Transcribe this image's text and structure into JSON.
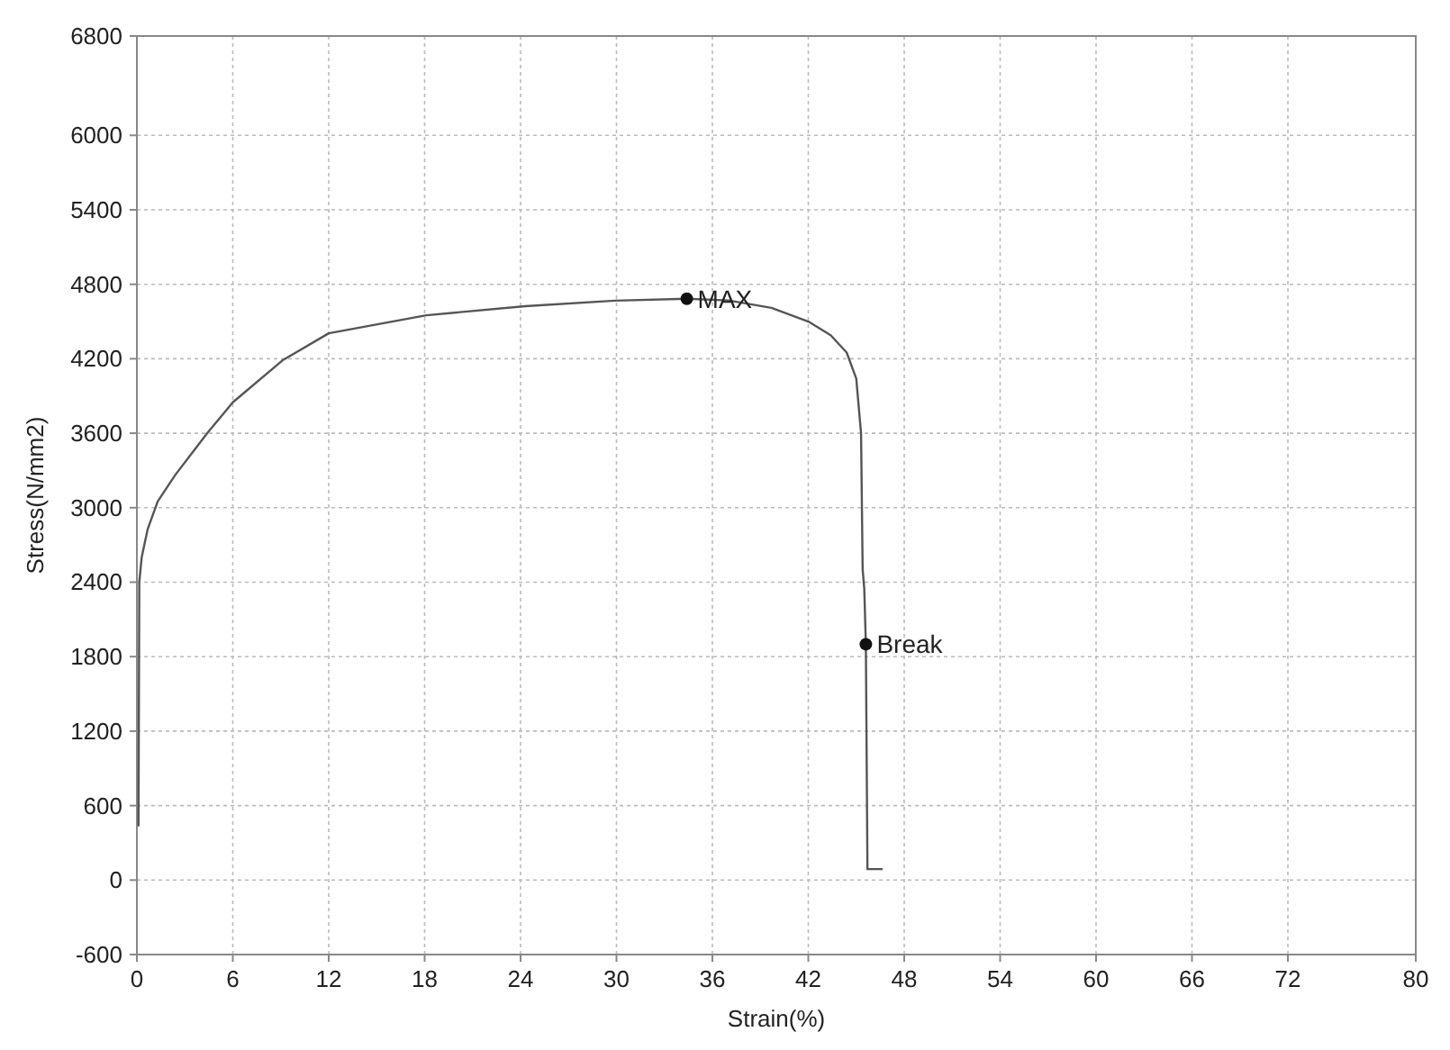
{
  "chart_data": {
    "type": "line",
    "xlabel": "Strain(%)",
    "ylabel": "Stress(N/mm2)",
    "x": [
      0.1,
      0.15,
      0.3,
      0.67,
      1.3,
      2.4,
      4.4,
      6,
      9.1,
      12,
      18.1,
      24.3,
      29.9,
      34.4,
      37,
      39.7,
      42,
      43.4,
      44.4,
      45,
      45.3,
      45.4,
      45.5,
      45.6,
      45.7,
      46.6
    ],
    "series": [
      {
        "color": "#555555",
        "values": [
          440,
          2400,
          2600,
          2825,
          3050,
          3264,
          3600,
          3849,
          4186,
          4405,
          4550,
          4624,
          4668,
          4683,
          4670,
          4610,
          4500,
          4390,
          4250,
          4040,
          3600,
          2500,
          2350,
          1900,
          88,
          88
        ]
      }
    ],
    "annotations": [
      {
        "text": "MAX",
        "x": 34.4,
        "y": 4683
      },
      {
        "text": "Break",
        "x": 45.6,
        "y": 1900
      }
    ],
    "xlim": [
      0,
      80
    ],
    "xticks": [
      0,
      6,
      12,
      18,
      24,
      30,
      36,
      42,
      48,
      54,
      60,
      66,
      72,
      80
    ],
    "ylim": [
      -600,
      6800
    ],
    "yticks": [
      -600,
      0,
      600,
      1200,
      1800,
      2400,
      3000,
      3600,
      4200,
      4800,
      5400,
      6000,
      6800
    ],
    "grid": true,
    "marker": "none",
    "line_style": "solid"
  }
}
